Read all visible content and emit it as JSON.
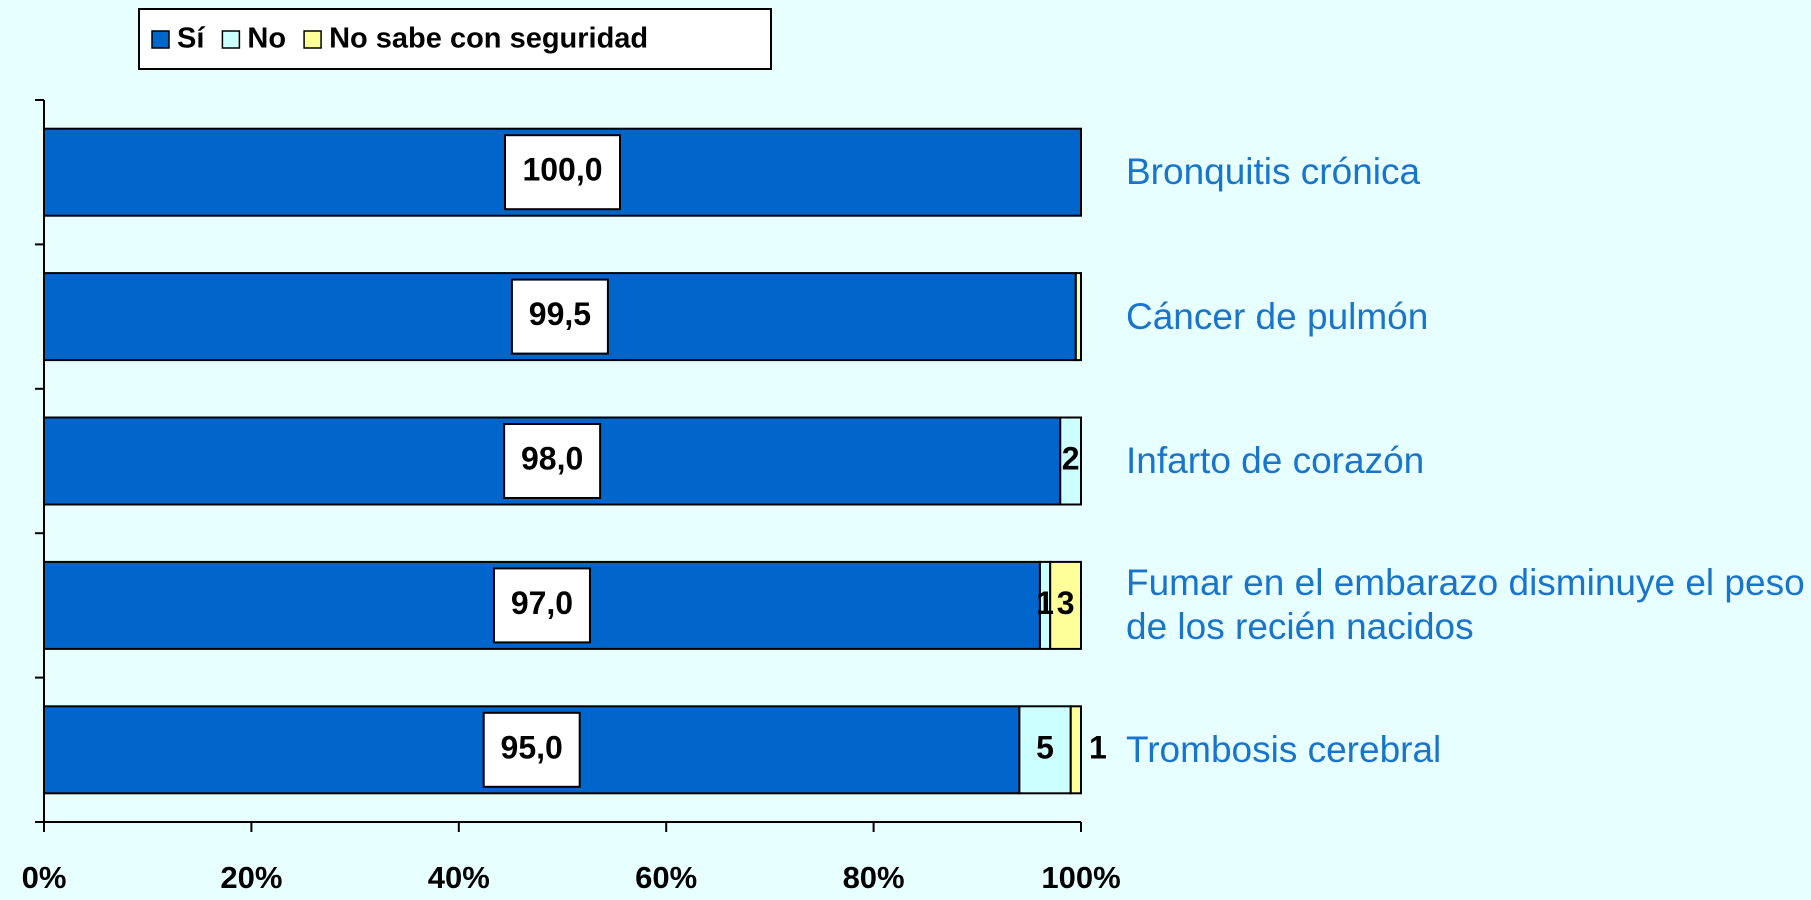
{
  "chart_data": {
    "type": "bar",
    "orientation": "horizontal",
    "stacked": true,
    "categories": [
      "Bronquitis crónica",
      "Cáncer de pulmón",
      "Infarto de corazón",
      "Fumar en el embarazo disminuye el peso de los recién nacidos",
      "Trombosis cerebral"
    ],
    "series": [
      {
        "name": "Sí",
        "color": "#0066cc",
        "values": [
          100.0,
          99.5,
          98.0,
          97.0,
          95.0
        ],
        "value_labels": [
          "100,0",
          "99,5",
          "98,0",
          "97,0",
          "95,0"
        ]
      },
      {
        "name": "No",
        "color": "#ccffff",
        "values": [
          0,
          0,
          2,
          1,
          5
        ],
        "value_labels": [
          null,
          null,
          "2",
          "1",
          "5"
        ]
      },
      {
        "name": "No sabe con seguridad",
        "color": "#ffff99",
        "values": [
          0,
          0.5,
          0,
          3,
          1
        ],
        "value_labels": [
          null,
          null,
          null,
          "3",
          "1"
        ]
      }
    ],
    "xlim": [
      0,
      100
    ],
    "xticks": [
      {
        "value": 0,
        "label": "0%"
      },
      {
        "value": 20,
        "label": "20%"
      },
      {
        "value": 40,
        "label": "40%"
      },
      {
        "value": 60,
        "label": "60%"
      },
      {
        "value": 80,
        "label": "80%"
      },
      {
        "value": 100,
        "label": "100%"
      }
    ],
    "legend": "top"
  }
}
